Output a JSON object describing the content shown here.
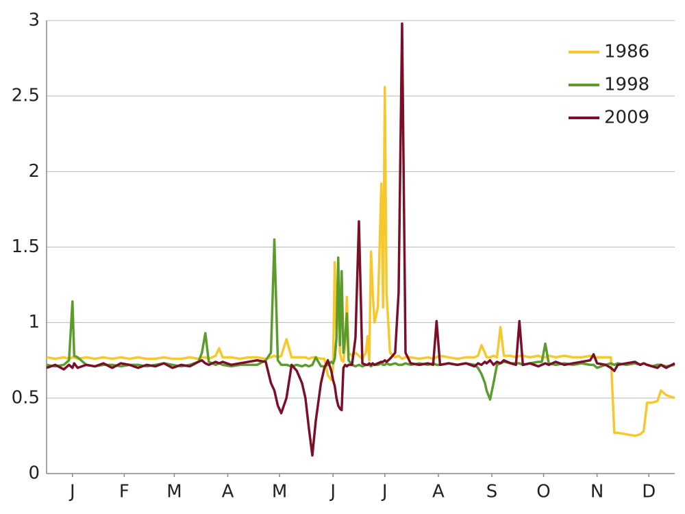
{
  "chart_data": {
    "type": "line",
    "x": [
      1,
      6,
      11,
      14,
      16,
      17,
      19,
      24,
      29,
      34,
      39,
      44,
      49,
      54,
      59,
      64,
      69,
      74,
      79,
      84,
      89,
      91,
      93,
      95,
      99,
      101,
      103,
      108,
      113,
      118,
      123,
      128,
      131,
      133,
      135,
      137,
      140,
      143,
      146,
      149,
      151,
      153,
      155,
      157,
      160,
      162,
      164,
      166,
      167,
      168,
      169,
      170,
      171,
      172,
      173,
      174,
      175,
      176,
      178,
      180,
      182,
      184,
      186,
      187,
      188,
      189,
      190,
      191,
      193,
      195,
      196,
      197,
      198,
      200,
      203,
      205,
      207,
      209,
      212,
      217,
      222,
      225,
      227,
      229,
      234,
      239,
      244,
      249,
      251,
      253,
      255,
      256,
      258,
      260,
      262,
      264,
      266,
      270,
      273,
      275,
      277,
      281,
      286,
      288,
      290,
      292,
      296,
      301,
      306,
      311,
      316,
      318,
      320,
      325,
      328,
      330,
      332,
      337,
      342,
      345,
      347,
      349,
      352,
      355,
      357,
      360,
      365
    ],
    "xlim": [
      1,
      365
    ],
    "xticks": [
      {
        "value": 16,
        "label": "J"
      },
      {
        "value": 46,
        "label": "F"
      },
      {
        "value": 75,
        "label": "M"
      },
      {
        "value": 106,
        "label": "A"
      },
      {
        "value": 136,
        "label": "M"
      },
      {
        "value": 167,
        "label": "J"
      },
      {
        "value": 197,
        "label": "J"
      },
      {
        "value": 228,
        "label": "A"
      },
      {
        "value": 259,
        "label": "S"
      },
      {
        "value": 289,
        "label": "O"
      },
      {
        "value": 320,
        "label": "N"
      },
      {
        "value": 350,
        "label": "D"
      }
    ],
    "ylim": [
      0,
      3
    ],
    "yticks": [
      0,
      0.5,
      1,
      1.5,
      2,
      2.5,
      3
    ],
    "grid": true,
    "legend": "top-right",
    "series": [
      {
        "name": "1986",
        "color": "#f7c82e",
        "values": [
          0.77,
          0.76,
          0.77,
          0.76,
          0.77,
          0.77,
          0.76,
          0.77,
          0.76,
          0.77,
          0.76,
          0.77,
          0.76,
          0.77,
          0.76,
          0.76,
          0.77,
          0.76,
          0.76,
          0.77,
          0.76,
          0.77,
          0.77,
          0.76,
          0.78,
          0.83,
          0.77,
          0.77,
          0.76,
          0.77,
          0.77,
          0.76,
          0.77,
          0.78,
          0.77,
          0.78,
          0.89,
          0.77,
          0.77,
          0.77,
          0.77,
          0.76,
          0.77,
          0.77,
          0.76,
          0.76,
          0.65,
          0.62,
          0.7,
          1.4,
          0.9,
          1.3,
          0.8,
          0.75,
          0.74,
          0.85,
          1.17,
          0.8,
          0.78,
          0.8,
          0.78,
          0.76,
          0.8,
          0.91,
          0.75,
          1.47,
          1.2,
          1.0,
          1.1,
          1.92,
          1.1,
          2.56,
          1.2,
          0.8,
          0.77,
          0.78,
          0.76,
          0.77,
          0.77,
          0.76,
          0.77,
          0.76,
          0.77,
          0.78,
          0.77,
          0.76,
          0.77,
          0.77,
          0.78,
          0.85,
          0.8,
          0.77,
          0.77,
          0.78,
          0.77,
          0.97,
          0.78,
          0.78,
          0.77,
          0.78,
          0.78,
          0.77,
          0.78,
          0.77,
          0.77,
          0.78,
          0.77,
          0.78,
          0.77,
          0.77,
          0.78,
          0.77,
          0.77,
          0.77,
          0.77,
          0.27,
          0.27,
          0.26,
          0.25,
          0.26,
          0.28,
          0.47,
          0.47,
          0.48,
          0.55,
          0.52,
          0.5
        ]
      },
      {
        "name": "1998",
        "color": "#5c9c2c",
        "values": [
          0.72,
          0.71,
          0.72,
          0.75,
          1.14,
          0.78,
          0.77,
          0.72,
          0.71,
          0.72,
          0.72,
          0.71,
          0.72,
          0.72,
          0.71,
          0.72,
          0.73,
          0.72,
          0.71,
          0.72,
          0.74,
          0.8,
          0.93,
          0.74,
          0.72,
          0.73,
          0.72,
          0.71,
          0.72,
          0.72,
          0.72,
          0.75,
          0.8,
          1.55,
          0.75,
          0.72,
          0.72,
          0.71,
          0.72,
          0.71,
          0.72,
          0.71,
          0.72,
          0.77,
          0.71,
          0.71,
          0.72,
          0.74,
          0.73,
          0.76,
          0.9,
          1.43,
          0.85,
          1.34,
          0.8,
          0.9,
          1.06,
          0.75,
          0.72,
          0.71,
          0.72,
          0.71,
          0.72,
          0.72,
          0.72,
          0.71,
          0.72,
          0.72,
          0.72,
          0.73,
          0.72,
          0.72,
          0.73,
          0.72,
          0.73,
          0.72,
          0.72,
          0.73,
          0.72,
          0.73,
          0.72,
          0.73,
          0.72,
          0.72,
          0.73,
          0.72,
          0.73,
          0.72,
          0.7,
          0.66,
          0.6,
          0.55,
          0.49,
          0.6,
          0.72,
          0.73,
          0.74,
          0.73,
          0.73,
          0.73,
          0.72,
          0.73,
          0.74,
          0.74,
          0.86,
          0.73,
          0.72,
          0.73,
          0.72,
          0.73,
          0.72,
          0.72,
          0.7,
          0.72,
          0.73,
          0.72,
          0.73,
          0.72,
          0.73,
          0.72,
          0.73,
          0.72,
          0.71,
          0.72,
          0.72,
          0.71,
          0.72
        ]
      },
      {
        "name": "2009",
        "color": "#7a0f2a",
        "values": [
          0.7,
          0.72,
          0.69,
          0.72,
          0.7,
          0.73,
          0.7,
          0.72,
          0.71,
          0.73,
          0.7,
          0.73,
          0.72,
          0.7,
          0.72,
          0.71,
          0.73,
          0.7,
          0.72,
          0.71,
          0.74,
          0.75,
          0.73,
          0.72,
          0.74,
          0.73,
          0.74,
          0.72,
          0.73,
          0.74,
          0.75,
          0.74,
          0.6,
          0.55,
          0.45,
          0.4,
          0.5,
          0.72,
          0.68,
          0.6,
          0.5,
          0.3,
          0.12,
          0.35,
          0.6,
          0.7,
          0.75,
          0.68,
          0.62,
          0.58,
          0.5,
          0.45,
          0.43,
          0.42,
          0.7,
          0.72,
          0.71,
          0.72,
          0.72,
          0.9,
          1.67,
          0.73,
          0.72,
          0.72,
          0.73,
          0.72,
          0.73,
          0.72,
          0.73,
          0.74,
          0.74,
          0.75,
          0.74,
          0.76,
          0.8,
          1.2,
          2.98,
          0.8,
          0.73,
          0.72,
          0.73,
          0.72,
          1.01,
          0.72,
          0.73,
          0.72,
          0.73,
          0.71,
          0.73,
          0.72,
          0.74,
          0.73,
          0.75,
          0.72,
          0.74,
          0.73,
          0.75,
          0.73,
          0.72,
          1.01,
          0.72,
          0.73,
          0.71,
          0.72,
          0.73,
          0.72,
          0.74,
          0.72,
          0.73,
          0.74,
          0.75,
          0.79,
          0.73,
          0.72,
          0.7,
          0.68,
          0.72,
          0.73,
          0.74,
          0.72,
          0.73,
          0.72,
          0.71,
          0.7,
          0.72,
          0.7,
          0.73
        ]
      }
    ]
  }
}
